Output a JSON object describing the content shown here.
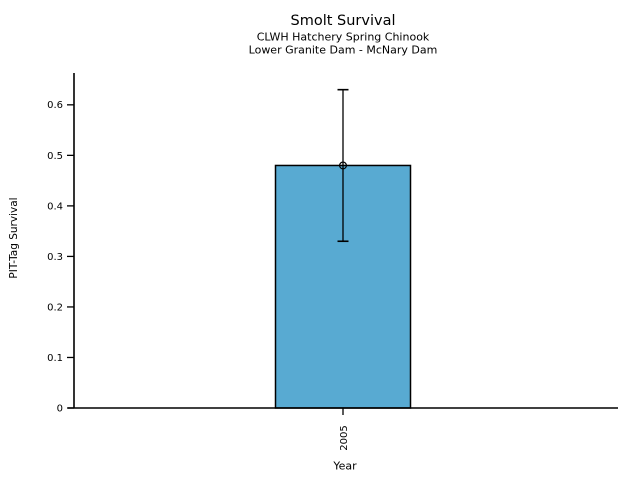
{
  "header": {
    "title": "Smolt Survival",
    "subtitle1": "CLWH Hatchery Spring Chinook",
    "subtitle2": "Lower Granite Dam - McNary Dam"
  },
  "chart_data": {
    "type": "bar",
    "title": "Smolt Survival",
    "subtitle": [
      "CLWH Hatchery Spring Chinook",
      "Lower Granite Dam - McNary Dam"
    ],
    "categories": [
      "2005"
    ],
    "values": [
      0.48
    ],
    "error_low": [
      0.33
    ],
    "error_high": [
      0.63
    ],
    "xlabel": "Year",
    "ylabel": "PIT-Tag Survival",
    "ylim": [
      0,
      0.663
    ],
    "yticks": [
      0,
      0.1,
      0.2,
      0.3,
      0.4,
      0.5,
      0.6
    ],
    "ytick_labels": [
      "0",
      "0.1",
      "0.2",
      "0.3",
      "0.4",
      "0.5",
      "0.6"
    ],
    "grid": false,
    "legend": null,
    "bar_color": "#58AAD2",
    "bar_edge_color": "#000000",
    "error_color": "#000000",
    "marker": "open-circle",
    "marker_edge_color": "#000000"
  }
}
